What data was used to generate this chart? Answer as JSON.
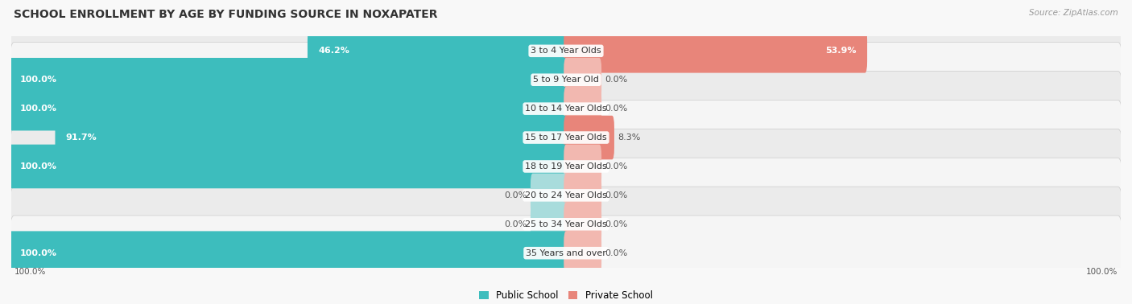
{
  "title": "SCHOOL ENROLLMENT BY AGE BY FUNDING SOURCE IN NOXAPATER",
  "source": "Source: ZipAtlas.com",
  "categories": [
    "3 to 4 Year Olds",
    "5 to 9 Year Old",
    "10 to 14 Year Olds",
    "15 to 17 Year Olds",
    "18 to 19 Year Olds",
    "20 to 24 Year Olds",
    "25 to 34 Year Olds",
    "35 Years and over"
  ],
  "public_values": [
    46.2,
    100.0,
    100.0,
    91.7,
    100.0,
    0.0,
    0.0,
    100.0
  ],
  "private_values": [
    53.9,
    0.0,
    0.0,
    8.3,
    0.0,
    0.0,
    0.0,
    0.0
  ],
  "public_color": "#3DBDBD",
  "private_color": "#E8857A",
  "public_color_zero": "#A8DCDC",
  "private_color_zero": "#F2B8B0",
  "row_bg_odd": "#EBEBEB",
  "row_bg_even": "#F5F5F5",
  "bg_color": "#F8F8F8",
  "title_fontsize": 10,
  "label_fontsize": 8,
  "legend_fontsize": 8.5,
  "source_fontsize": 7.5
}
